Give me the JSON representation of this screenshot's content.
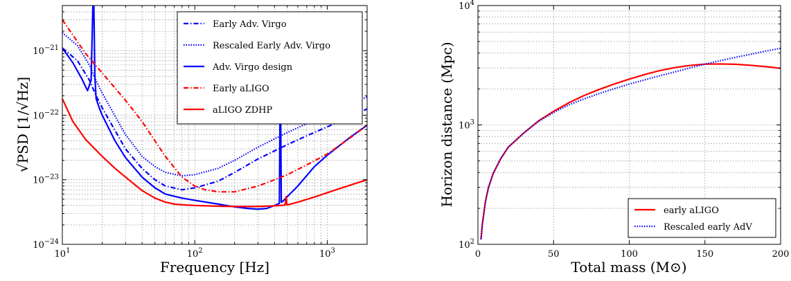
{
  "chart_data": [
    {
      "type": "line",
      "xlabel": "Frequency [Hz]",
      "ylabel": "√PSD  [1/√Hz]",
      "xscale": "log",
      "yscale": "log",
      "xlim": [
        10,
        2000
      ],
      "ylim": [
        1e-24,
        5e-21
      ],
      "grid": true,
      "legend_position": "top-right",
      "x_ticks": [
        {
          "value": 10,
          "base": "10",
          "exp": "1"
        },
        {
          "value": 100,
          "base": "10",
          "exp": "2"
        },
        {
          "value": 1000,
          "base": "10",
          "exp": "3"
        }
      ],
      "y_ticks": [
        {
          "value": 1e-24,
          "base": "10",
          "exp": "−24"
        },
        {
          "value": 1e-23,
          "base": "10",
          "exp": "−23"
        },
        {
          "value": 1e-22,
          "base": "10",
          "exp": "−22"
        },
        {
          "value": 1e-21,
          "base": "10",
          "exp": "−21"
        }
      ],
      "series": [
        {
          "name": "Early Adv. Virgo",
          "color": "#0000ff",
          "style": "dashdot",
          "x": [
            10,
            13,
            16,
            18,
            20,
            30,
            40,
            50,
            60,
            80,
            100,
            150,
            200,
            300,
            400,
            500,
            700,
            1000,
            1500,
            2000
          ],
          "y": [
            1.1e-21,
            7e-22,
            3.5e-22,
            2e-22,
            1.3e-22,
            3e-23,
            1.5e-23,
            1e-23,
            8e-24,
            7e-24,
            7.5e-24,
            9.5e-24,
            1.3e-23,
            2.1e-23,
            2.8e-23,
            3.5e-23,
            4.8e-23,
            6.6e-23,
            9.5e-23,
            1.25e-22
          ]
        },
        {
          "name": "Rescaled Early Adv. Virgo",
          "color": "#0000ff",
          "style": "dotted",
          "x": [
            10,
            13,
            16,
            18,
            20,
            30,
            40,
            50,
            60,
            80,
            100,
            150,
            200,
            300,
            400,
            500,
            700,
            1000,
            1500,
            2000
          ],
          "y": [
            1.9e-21,
            1.2e-21,
            6e-22,
            3.4e-22,
            2.2e-22,
            5e-23,
            2.3e-23,
            1.6e-23,
            1.3e-23,
            1.15e-23,
            1.2e-23,
            1.5e-23,
            2e-23,
            3.2e-23,
            4.3e-23,
            5.4e-23,
            7.4e-23,
            1.02e-22,
            1.48e-22,
            1.92e-22
          ]
        },
        {
          "name": "Adv. Virgo design",
          "color": "#0000ff",
          "style": "solid",
          "x": [
            10,
            12,
            14,
            15.5,
            16.5,
            17.0,
            17.3,
            17.6,
            18,
            19,
            20,
            25,
            30,
            40,
            50,
            60,
            80,
            100,
            150,
            200,
            250,
            300,
            350,
            400,
            435,
            440,
            445,
            450,
            460,
            500,
            600,
            800,
            1000,
            1500,
            2000
          ],
          "y": [
            1.1e-21,
            6.5e-22,
            3.7e-22,
            2.4e-22,
            3.5e-22,
            5e-21,
            5e-21,
            4e-22,
            1.8e-22,
            1.3e-22,
            1e-22,
            4e-23,
            2.2e-23,
            1.1e-23,
            7.5e-24,
            6e-24,
            5.2e-24,
            4.8e-24,
            4.2e-24,
            3.8e-24,
            3.6e-24,
            3.5e-24,
            3.6e-24,
            4e-24,
            4.3e-24,
            1.1e-22,
            1.1e-22,
            4.5e-24,
            4.6e-24,
            5.5e-24,
            8e-24,
            1.6e-23,
            2.4e-23,
            4.6e-23,
            7e-23
          ]
        },
        {
          "name": "Early aLIGO",
          "color": "#ff0000",
          "style": "dashdot",
          "x": [
            10,
            15,
            20,
            30,
            40,
            50,
            60,
            80,
            100,
            120,
            150,
            200,
            300,
            400,
            500,
            700,
            1000,
            1500,
            2000
          ],
          "y": [
            3e-21,
            9e-22,
            4.5e-22,
            1.7e-22,
            8e-23,
            4e-23,
            2.3e-23,
            1.1e-23,
            8e-24,
            7e-24,
            6.5e-24,
            6.5e-24,
            8e-24,
            1e-23,
            1.2e-23,
            1.7e-23,
            2.5e-23,
            4.5e-23,
            7e-23
          ]
        },
        {
          "name": "aLIGO ZDHP",
          "color": "#ff0000",
          "style": "solid",
          "x": [
            10,
            12,
            15,
            20,
            25,
            30,
            40,
            50,
            60,
            70,
            80,
            100,
            150,
            200,
            300,
            400,
            480,
            490,
            495,
            505,
            600,
            800,
            1000,
            1500,
            2000
          ],
          "y": [
            1.8e-22,
            8e-23,
            4.2e-23,
            2.3e-23,
            1.5e-23,
            1.1e-23,
            6.8e-24,
            5.2e-24,
            4.5e-24,
            4.2e-24,
            4.1e-24,
            4e-24,
            3.9e-24,
            3.85e-24,
            3.85e-24,
            3.95e-24,
            4.05e-24,
            5.5e-24,
            4.1e-24,
            4.1e-24,
            4.5e-24,
            5.4e-24,
            6.3e-24,
            8.3e-24,
            1e-23
          ]
        }
      ]
    },
    {
      "type": "line",
      "xlabel": "Total mass (M⊙)",
      "ylabel": "Horizon distance (Mpc)",
      "xscale": "linear",
      "yscale": "log",
      "xlim": [
        0,
        200
      ],
      "ylim": [
        100,
        10000
      ],
      "grid": true,
      "legend_position": "bottom-right",
      "x_ticks": [
        {
          "value": 0,
          "label": "0"
        },
        {
          "value": 50,
          "label": "50"
        },
        {
          "value": 100,
          "label": "100"
        },
        {
          "value": 150,
          "label": "150"
        },
        {
          "value": 200,
          "label": "200"
        }
      ],
      "y_ticks": [
        {
          "value": 100,
          "base": "10",
          "exp": "2"
        },
        {
          "value": 1000,
          "base": "10",
          "exp": "3"
        },
        {
          "value": 10000,
          "base": "10",
          "exp": "4"
        }
      ],
      "series": [
        {
          "name": "early aLIGO",
          "color": "#ff0000",
          "style": "solid",
          "x": [
            2,
            3,
            5,
            7,
            10,
            15,
            20,
            30,
            40,
            50,
            60,
            70,
            80,
            90,
            100,
            110,
            120,
            130,
            140,
            150,
            160,
            170,
            180,
            190,
            200
          ],
          "y": [
            110,
            150,
            230,
            300,
            390,
            520,
            650,
            850,
            1080,
            1300,
            1530,
            1760,
            1980,
            2200,
            2420,
            2640,
            2850,
            3020,
            3150,
            3230,
            3240,
            3220,
            3160,
            3080,
            2980
          ]
        },
        {
          "name": "Rescaled early AdV",
          "color": "#0000ff",
          "style": "dotted",
          "x": [
            2,
            3,
            5,
            7,
            10,
            15,
            20,
            30,
            40,
            50,
            60,
            70,
            80,
            90,
            100,
            110,
            120,
            130,
            140,
            150,
            160,
            170,
            180,
            190,
            200
          ],
          "y": [
            110,
            150,
            230,
            300,
            390,
            520,
            650,
            850,
            1070,
            1270,
            1470,
            1650,
            1830,
            2010,
            2200,
            2380,
            2580,
            2780,
            3000,
            3230,
            3450,
            3680,
            3900,
            4150,
            4380
          ]
        }
      ]
    }
  ]
}
